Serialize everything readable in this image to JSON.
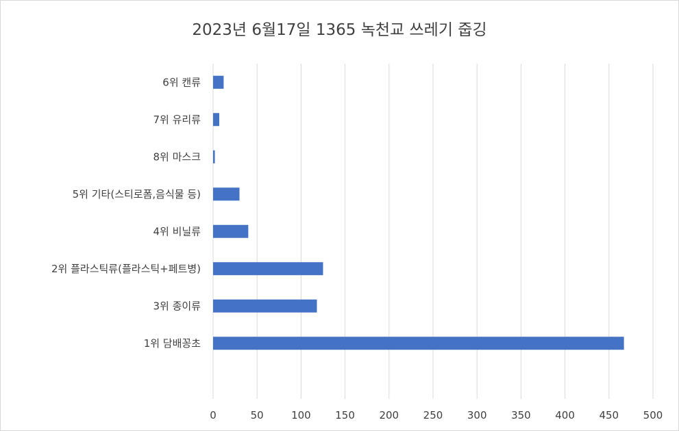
{
  "chart_data": {
    "type": "bar",
    "orientation": "horizontal",
    "title": "2023년 6월17일 1365 녹천교 쓰레기 줍깅",
    "categories": [
      "6위 캔류",
      "7위 유리류",
      "8위 마스크",
      "5위 기타(스티로폼,음식물 등)",
      "4위 비닐류",
      "2위 플라스틱류(플라스틱+페트병)",
      "3위 종이류",
      "1위 담배꽁초"
    ],
    "values": [
      12,
      7,
      2,
      30,
      40,
      125,
      118,
      467
    ],
    "xlim": [
      0,
      500
    ],
    "xticks": [
      0,
      50,
      100,
      150,
      200,
      250,
      300,
      350,
      400,
      450,
      500
    ],
    "grid": true,
    "bar_color": "#4472c4",
    "legend": "none"
  }
}
